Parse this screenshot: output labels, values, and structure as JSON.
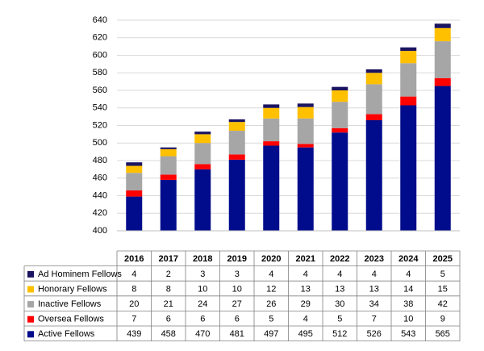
{
  "chart_data": {
    "type": "stacked-bar-table",
    "categories": [
      "2016",
      "2017",
      "2018",
      "2019",
      "2020",
      "2021",
      "2022",
      "2023",
      "2024",
      "2025"
    ],
    "series": [
      {
        "name": "Active Fellows",
        "color": "#000c8c",
        "values": [
          439,
          458,
          470,
          481,
          497,
          495,
          512,
          526,
          543,
          565
        ]
      },
      {
        "name": "Oversea Fellows",
        "color": "#ff0000",
        "values": [
          7,
          6,
          6,
          6,
          5,
          4,
          5,
          7,
          10,
          9
        ]
      },
      {
        "name": "Inactive Fellows",
        "color": "#a6a6a6",
        "values": [
          20,
          21,
          24,
          27,
          26,
          29,
          30,
          34,
          38,
          42
        ]
      },
      {
        "name": "Honorary Fellows",
        "color": "#ffc000",
        "values": [
          8,
          8,
          10,
          10,
          12,
          13,
          13,
          13,
          14,
          15
        ]
      },
      {
        "name": "Ad Hominem Fellows",
        "color": "#1b1460",
        "values": [
          4,
          2,
          3,
          3,
          4,
          4,
          4,
          4,
          4,
          5
        ]
      }
    ],
    "ylim": [
      400,
      640
    ],
    "yticks": [
      400,
      420,
      440,
      460,
      480,
      500,
      520,
      540,
      560,
      580,
      600,
      620,
      640
    ],
    "grid": true
  }
}
